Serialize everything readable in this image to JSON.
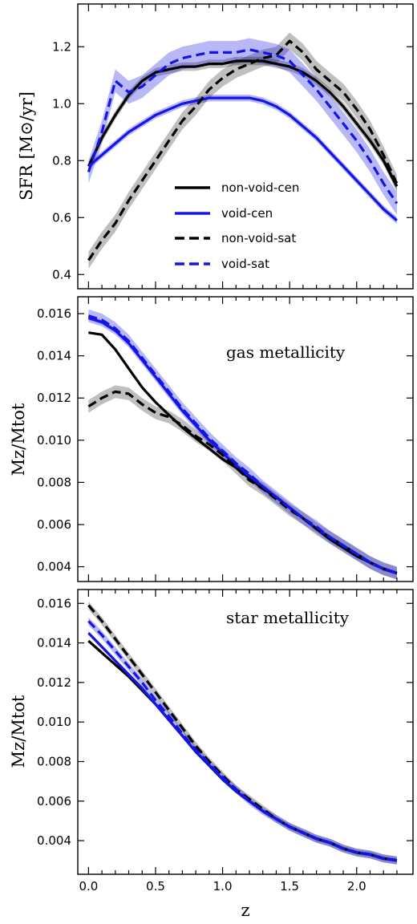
{
  "chart_data": [
    {
      "type": "line",
      "panel": "SFR",
      "ylabel": "SFR [M⊙/yr]",
      "ylim": [
        0.35,
        1.35
      ],
      "yticks": [
        "0.4",
        "0.6",
        "0.8",
        "1.0",
        "1.2"
      ],
      "xlim": [
        -0.08,
        2.42
      ],
      "legend_position": "lower-center",
      "series": [
        {
          "name": "non-void-cen",
          "style": "solid",
          "color": "#000000",
          "x": [
            0,
            0.1,
            0.2,
            0.3,
            0.4,
            0.5,
            0.6,
            0.7,
            0.8,
            0.9,
            1.0,
            1.1,
            1.2,
            1.3,
            1.4,
            1.5,
            1.6,
            1.7,
            1.8,
            1.9,
            2.0,
            2.1,
            2.2,
            2.3
          ],
          "y": [
            0.78,
            0.88,
            0.96,
            1.03,
            1.08,
            1.11,
            1.12,
            1.13,
            1.13,
            1.14,
            1.14,
            1.15,
            1.15,
            1.15,
            1.14,
            1.13,
            1.11,
            1.08,
            1.04,
            0.99,
            0.93,
            0.87,
            0.8,
            0.71
          ],
          "band": 0.015
        },
        {
          "name": "void-cen",
          "style": "solid",
          "color": "#1414e6",
          "x": [
            0,
            0.1,
            0.2,
            0.3,
            0.4,
            0.5,
            0.6,
            0.7,
            0.8,
            0.9,
            1.0,
            1.1,
            1.2,
            1.3,
            1.4,
            1.5,
            1.6,
            1.7,
            1.8,
            1.9,
            2.0,
            2.1,
            2.2,
            2.3
          ],
          "y": [
            0.78,
            0.82,
            0.86,
            0.9,
            0.93,
            0.96,
            0.98,
            1.0,
            1.01,
            1.02,
            1.02,
            1.02,
            1.02,
            1.01,
            0.99,
            0.96,
            0.92,
            0.88,
            0.83,
            0.78,
            0.73,
            0.68,
            0.63,
            0.59
          ],
          "band": 0.012
        },
        {
          "name": "non-void-sat",
          "style": "dashed",
          "color": "#000000",
          "x": [
            0,
            0.1,
            0.2,
            0.3,
            0.4,
            0.5,
            0.6,
            0.7,
            0.8,
            0.9,
            1.0,
            1.1,
            1.2,
            1.3,
            1.4,
            1.5,
            1.6,
            1.7,
            1.8,
            1.9,
            2.0,
            2.1,
            2.2,
            2.3
          ],
          "y": [
            0.45,
            0.52,
            0.58,
            0.66,
            0.73,
            0.8,
            0.87,
            0.94,
            0.99,
            1.05,
            1.09,
            1.12,
            1.14,
            1.16,
            1.17,
            1.22,
            1.18,
            1.12,
            1.08,
            1.04,
            0.98,
            0.91,
            0.82,
            0.72
          ],
          "band": 0.03
        },
        {
          "name": "void-sat",
          "style": "dashed",
          "color": "#1414e6",
          "x": [
            0,
            0.1,
            0.2,
            0.3,
            0.4,
            0.5,
            0.6,
            0.7,
            0.8,
            0.9,
            1.0,
            1.1,
            1.2,
            1.3,
            1.4,
            1.5,
            1.6,
            1.7,
            1.8,
            1.9,
            2.0,
            2.1,
            2.2,
            2.3
          ],
          "y": [
            0.76,
            0.9,
            1.08,
            1.04,
            1.06,
            1.1,
            1.14,
            1.16,
            1.17,
            1.18,
            1.18,
            1.18,
            1.19,
            1.18,
            1.17,
            1.15,
            1.1,
            1.05,
            0.99,
            0.93,
            0.87,
            0.8,
            0.72,
            0.65
          ],
          "band": 0.04
        }
      ]
    },
    {
      "type": "line",
      "panel": "gas",
      "ylabel": "Mz/Mtot",
      "annotation": "gas metallicity",
      "ylim": [
        0.0033,
        0.0168
      ],
      "yticks": [
        "0.004",
        "0.006",
        "0.008",
        "0.010",
        "0.012",
        "0.014",
        "0.016"
      ],
      "xlim": [
        -0.08,
        2.42
      ],
      "series": [
        {
          "name": "non-void-cen",
          "style": "solid",
          "color": "#000000",
          "x": [
            0,
            0.1,
            0.2,
            0.3,
            0.4,
            0.5,
            0.6,
            0.7,
            0.8,
            0.9,
            1.0,
            1.1,
            1.2,
            1.3,
            1.4,
            1.5,
            1.6,
            1.7,
            1.8,
            1.9,
            2.0,
            2.1,
            2.2,
            2.3
          ],
          "y": [
            0.0151,
            0.015,
            0.0143,
            0.0134,
            0.0125,
            0.0118,
            0.0112,
            0.0106,
            0.0101,
            0.0096,
            0.0091,
            0.0087,
            0.0082,
            0.0077,
            0.0073,
            0.0068,
            0.0063,
            0.0058,
            0.0053,
            0.0049,
            0.0045,
            0.0042,
            0.0039,
            0.0037
          ],
          "band": 5e-05
        },
        {
          "name": "void-cen",
          "style": "solid",
          "color": "#1414e6",
          "x": [
            0,
            0.1,
            0.2,
            0.3,
            0.4,
            0.5,
            0.6,
            0.7,
            0.8,
            0.9,
            1.0,
            1.1,
            1.2,
            1.3,
            1.4,
            1.5,
            1.6,
            1.7,
            1.8,
            1.9,
            2.0,
            2.1,
            2.2,
            2.3
          ],
          "y": [
            0.0158,
            0.0156,
            0.0152,
            0.0146,
            0.0138,
            0.013,
            0.0122,
            0.0114,
            0.0107,
            0.01,
            0.0094,
            0.0088,
            0.0083,
            0.0078,
            0.0073,
            0.0068,
            0.0063,
            0.0058,
            0.0054,
            0.005,
            0.0046,
            0.0042,
            0.0039,
            0.0037
          ],
          "band": 0.0001
        },
        {
          "name": "non-void-sat",
          "style": "dashed",
          "color": "#000000",
          "x": [
            0,
            0.1,
            0.2,
            0.3,
            0.4,
            0.5,
            0.6,
            0.7,
            0.8,
            0.9,
            1.0,
            1.1,
            1.2,
            1.3,
            1.4,
            1.5,
            1.6,
            1.7,
            1.8,
            1.9,
            2.0,
            2.1,
            2.2,
            2.3
          ],
          "y": [
            0.0116,
            0.012,
            0.0123,
            0.0122,
            0.0117,
            0.0113,
            0.0111,
            0.0107,
            0.0102,
            0.0098,
            0.0093,
            0.0087,
            0.0081,
            0.0077,
            0.0072,
            0.0067,
            0.0063,
            0.0058,
            0.0054,
            0.005,
            0.0046,
            0.0042,
            0.0039,
            0.0037
          ],
          "band": 0.0003
        },
        {
          "name": "void-sat",
          "style": "dashed",
          "color": "#1414e6",
          "x": [
            0,
            0.1,
            0.2,
            0.3,
            0.4,
            0.5,
            0.6,
            0.7,
            0.8,
            0.9,
            1.0,
            1.1,
            1.2,
            1.3,
            1.4,
            1.5,
            1.6,
            1.7,
            1.8,
            1.9,
            2.0,
            2.1,
            2.2,
            2.3
          ],
          "y": [
            0.0159,
            0.0157,
            0.0153,
            0.0147,
            0.0139,
            0.0131,
            0.0123,
            0.0115,
            0.0108,
            0.0101,
            0.0095,
            0.0089,
            0.0084,
            0.0078,
            0.0073,
            0.0068,
            0.0063,
            0.0059,
            0.0054,
            0.005,
            0.0046,
            0.0042,
            0.0039,
            0.0037
          ],
          "band": 0.0003
        }
      ]
    },
    {
      "type": "line",
      "panel": "star",
      "ylabel": "Mz/Mtot",
      "annotation": "star metallicity",
      "xlabel": "z",
      "ylim": [
        0.0023,
        0.0167
      ],
      "yticks": [
        "0.004",
        "0.006",
        "0.008",
        "0.010",
        "0.012",
        "0.014",
        "0.016"
      ],
      "xlim": [
        -0.08,
        2.42
      ],
      "xticks": [
        "0.0",
        "0.5",
        "1.0",
        "1.5",
        "2.0"
      ],
      "series": [
        {
          "name": "non-void-cen",
          "style": "solid",
          "color": "#000000",
          "x": [
            0,
            0.1,
            0.2,
            0.3,
            0.4,
            0.5,
            0.6,
            0.7,
            0.8,
            0.9,
            1.0,
            1.1,
            1.2,
            1.3,
            1.4,
            1.5,
            1.6,
            1.7,
            1.8,
            1.9,
            2.0,
            2.1,
            2.2,
            2.3
          ],
          "y": [
            0.0141,
            0.0135,
            0.0129,
            0.0123,
            0.0116,
            0.0109,
            0.0101,
            0.0093,
            0.0085,
            0.0078,
            0.0071,
            0.0065,
            0.006,
            0.0055,
            0.0051,
            0.0047,
            0.0044,
            0.0041,
            0.0039,
            0.0036,
            0.0034,
            0.0033,
            0.0031,
            0.003
          ],
          "band": 5e-05
        },
        {
          "name": "void-cen",
          "style": "solid",
          "color": "#1414e6",
          "x": [
            0,
            0.1,
            0.2,
            0.3,
            0.4,
            0.5,
            0.6,
            0.7,
            0.8,
            0.9,
            1.0,
            1.1,
            1.2,
            1.3,
            1.4,
            1.5,
            1.6,
            1.7,
            1.8,
            1.9,
            2.0,
            2.1,
            2.2,
            2.3
          ],
          "y": [
            0.0145,
            0.0138,
            0.0131,
            0.0124,
            0.0117,
            0.0109,
            0.0101,
            0.0093,
            0.0085,
            0.0078,
            0.0071,
            0.0065,
            0.006,
            0.0055,
            0.0051,
            0.0047,
            0.0044,
            0.0041,
            0.0039,
            0.0036,
            0.0034,
            0.0033,
            0.0031,
            0.003
          ],
          "band": 0.0001
        },
        {
          "name": "non-void-sat",
          "style": "dashed",
          "color": "#000000",
          "x": [
            0,
            0.1,
            0.2,
            0.3,
            0.4,
            0.5,
            0.6,
            0.7,
            0.8,
            0.9,
            1.0,
            1.1,
            1.2,
            1.3,
            1.4,
            1.5,
            1.6,
            1.7,
            1.8,
            1.9,
            2.0,
            2.1,
            2.2,
            2.3
          ],
          "y": [
            0.0159,
            0.0151,
            0.0142,
            0.0133,
            0.0124,
            0.0115,
            0.0106,
            0.0097,
            0.0088,
            0.008,
            0.0073,
            0.0066,
            0.0061,
            0.0056,
            0.0051,
            0.0047,
            0.0044,
            0.0041,
            0.0039,
            0.0036,
            0.0034,
            0.0033,
            0.0031,
            0.003
          ],
          "band": 0.0002
        },
        {
          "name": "void-sat",
          "style": "dashed",
          "color": "#1414e6",
          "x": [
            0,
            0.1,
            0.2,
            0.3,
            0.4,
            0.5,
            0.6,
            0.7,
            0.8,
            0.9,
            1.0,
            1.1,
            1.2,
            1.3,
            1.4,
            1.5,
            1.6,
            1.7,
            1.8,
            1.9,
            2.0,
            2.1,
            2.2,
            2.3
          ],
          "y": [
            0.0151,
            0.0144,
            0.0136,
            0.0128,
            0.012,
            0.0111,
            0.0103,
            0.0094,
            0.0086,
            0.0079,
            0.0072,
            0.0066,
            0.006,
            0.0055,
            0.0051,
            0.0047,
            0.0044,
            0.0041,
            0.0039,
            0.0036,
            0.0034,
            0.0033,
            0.0031,
            0.003
          ],
          "band": 0.0002
        }
      ]
    }
  ]
}
